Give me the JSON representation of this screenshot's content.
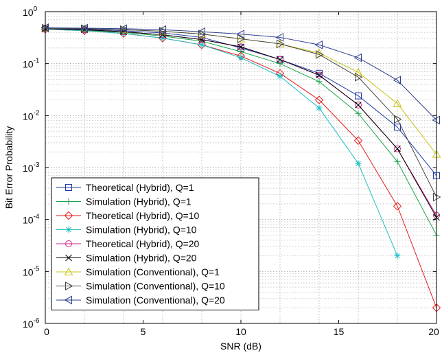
{
  "chart_data": {
    "type": "line",
    "title": "",
    "xlabel": "SNR (dB)",
    "ylabel": "Bit Error Probability",
    "xlim": [
      0,
      20
    ],
    "ylim": [
      1e-06,
      1
    ],
    "yscale": "log",
    "grid": true,
    "legend_position": "bottom-left",
    "x_ticks": [
      0,
      5,
      10,
      15,
      20
    ],
    "x_tick_labels": [
      "0",
      "5",
      "10",
      "15",
      "20"
    ],
    "y_tick_labels": [
      {
        "base": "10",
        "exp": "0",
        "value": 1
      },
      {
        "base": "10",
        "exp": "-1",
        "value": 0.1
      },
      {
        "base": "10",
        "exp": "-2",
        "value": 0.01
      },
      {
        "base": "10",
        "exp": "-3",
        "value": 0.001
      },
      {
        "base": "10",
        "exp": "-4",
        "value": 0.0001
      },
      {
        "base": "10",
        "exp": "-5",
        "value": 1e-05
      },
      {
        "base": "10",
        "exp": "-6",
        "value": 1e-06
      }
    ],
    "x": [
      0,
      2,
      4,
      6,
      8,
      10,
      12,
      14,
      16,
      18,
      20
    ],
    "series": [
      {
        "name": "Theoretical (Hybrid), Q=1",
        "color": "#1f3aa8",
        "marker": "square",
        "values": [
          0.48,
          0.46,
          0.43,
          0.39,
          0.32,
          0.2,
          0.12,
          0.065,
          0.024,
          0.006,
          0.0007
        ]
      },
      {
        "name": "Simulation (Hybrid), Q=1",
        "color": "#16a34a",
        "marker": "plus",
        "values": [
          0.47,
          0.44,
          0.4,
          0.34,
          0.27,
          0.17,
          0.1,
          0.045,
          0.011,
          0.0013,
          5e-05
        ]
      },
      {
        "name": "Theoretical (Hybrid), Q=10",
        "color": "#e61919",
        "marker": "diamond",
        "values": [
          0.46,
          0.43,
          0.38,
          0.31,
          0.23,
          0.14,
          0.065,
          0.02,
          0.0033,
          0.00018,
          2e-06
        ]
      },
      {
        "name": "Simulation (Hybrid), Q=10",
        "color": "#1bbfc4",
        "marker": "asterisk",
        "values": [
          0.46,
          0.43,
          0.38,
          0.31,
          0.23,
          0.13,
          0.057,
          0.014,
          0.0012,
          2e-05,
          null
        ]
      },
      {
        "name": "Theoretical (Hybrid), Q=20",
        "color": "#d1208a",
        "marker": "circle",
        "values": [
          0.47,
          0.45,
          0.41,
          0.36,
          0.29,
          0.21,
          0.12,
          0.06,
          0.016,
          0.0023,
          0.00012
        ]
      },
      {
        "name": "Simulation (Hybrid), Q=20",
        "color": "#000000",
        "marker": "x",
        "values": [
          0.47,
          0.45,
          0.41,
          0.36,
          0.29,
          0.21,
          0.12,
          0.06,
          0.016,
          0.0023,
          0.00011
        ]
      },
      {
        "name": "Simulation (Conventional), Q=1",
        "color": "#c8c214",
        "marker": "triangle-up",
        "values": [
          0.48,
          0.47,
          0.45,
          0.42,
          0.37,
          0.3,
          0.24,
          0.16,
          0.068,
          0.017,
          0.0018
        ]
      },
      {
        "name": "Simulation (Conventional), Q=10",
        "color": "#454545",
        "marker": "triangle-right",
        "values": [
          0.48,
          0.47,
          0.45,
          0.42,
          0.37,
          0.3,
          0.24,
          0.15,
          0.055,
          0.0085,
          0.00027
        ]
      },
      {
        "name": "Simulation (Conventional), Q=20",
        "color": "#2c3e8f",
        "marker": "triangle-left",
        "values": [
          0.49,
          0.48,
          0.47,
          0.45,
          0.41,
          0.37,
          0.32,
          0.23,
          0.13,
          0.048,
          0.0082
        ]
      }
    ]
  }
}
